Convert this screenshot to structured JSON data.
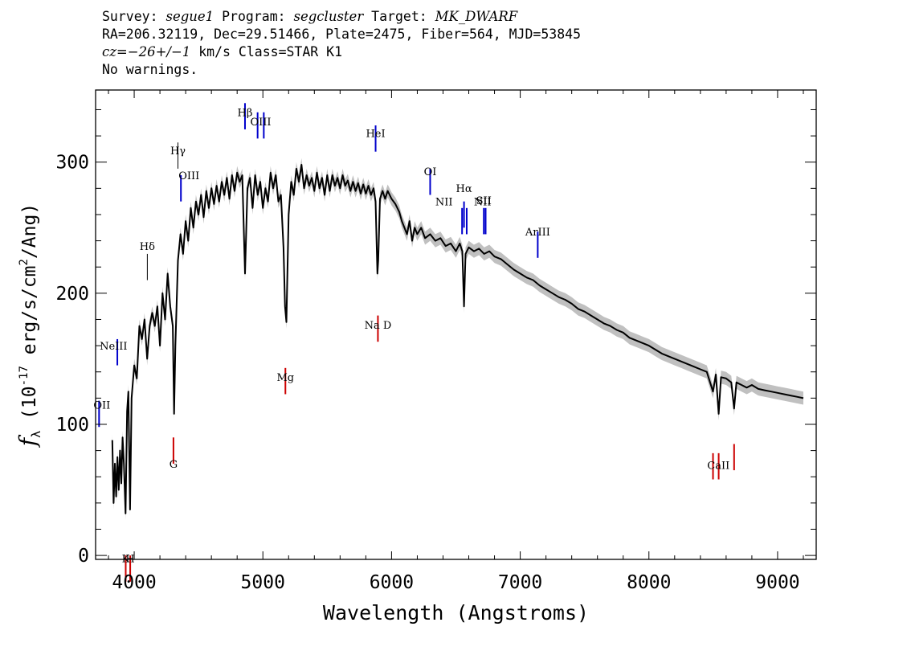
{
  "header": {
    "l1_survey_label": "Survey: ",
    "l1_survey": "segue1",
    "l1_program_label": " Program: ",
    "l1_program": "segcluster",
    "l1_target_label": " Target: ",
    "l1_target": "MK_DWARF",
    "l2": "RA=206.32119, Dec=29.51466, Plate=2475, Fiber=564, MJD=53845",
    "l3_cz_label": "cz=",
    "l3_cz": "−26+/−1",
    "l3_rest": " km/s Class=STAR K1",
    "l4": "No warnings."
  },
  "chart_data": {
    "type": "line",
    "xlabel": "Wavelength (Angstroms)",
    "ylabel": "f_λ (10^-17 erg/s/cm^2/Ang)",
    "xlim": [
      3700,
      9300
    ],
    "ylim": [
      -3,
      355
    ],
    "xticks": [
      4000,
      5000,
      6000,
      7000,
      8000,
      9000
    ],
    "yticks": [
      0,
      100,
      200,
      300
    ],
    "series_color": "#000000",
    "error_color": "#b0b0b0",
    "emission_color": "#0000cc",
    "absorption_color": "#cc0000",
    "spectrum": [
      [
        3830,
        88
      ],
      [
        3840,
        40
      ],
      [
        3850,
        70
      ],
      [
        3860,
        45
      ],
      [
        3870,
        75
      ],
      [
        3880,
        50
      ],
      [
        3890,
        80
      ],
      [
        3900,
        55
      ],
      [
        3910,
        90
      ],
      [
        3920,
        70
      ],
      [
        3933,
        32
      ],
      [
        3945,
        110
      ],
      [
        3955,
        125
      ],
      [
        3968,
        35
      ],
      [
        3980,
        120
      ],
      [
        4000,
        145
      ],
      [
        4020,
        135
      ],
      [
        4040,
        175
      ],
      [
        4060,
        165
      ],
      [
        4080,
        180
      ],
      [
        4101,
        150
      ],
      [
        4120,
        175
      ],
      [
        4140,
        185
      ],
      [
        4160,
        175
      ],
      [
        4180,
        190
      ],
      [
        4200,
        160
      ],
      [
        4220,
        200
      ],
      [
        4240,
        180
      ],
      [
        4260,
        215
      ],
      [
        4280,
        190
      ],
      [
        4300,
        175
      ],
      [
        4310,
        108
      ],
      [
        4320,
        160
      ],
      [
        4340,
        225
      ],
      [
        4360,
        245
      ],
      [
        4380,
        230
      ],
      [
        4400,
        255
      ],
      [
        4420,
        240
      ],
      [
        4440,
        265
      ],
      [
        4460,
        250
      ],
      [
        4480,
        270
      ],
      [
        4500,
        260
      ],
      [
        4520,
        275
      ],
      [
        4540,
        258
      ],
      [
        4560,
        278
      ],
      [
        4580,
        265
      ],
      [
        4600,
        280
      ],
      [
        4620,
        268
      ],
      [
        4640,
        282
      ],
      [
        4660,
        270
      ],
      [
        4680,
        285
      ],
      [
        4700,
        275
      ],
      [
        4720,
        288
      ],
      [
        4740,
        272
      ],
      [
        4760,
        290
      ],
      [
        4780,
        278
      ],
      [
        4800,
        292
      ],
      [
        4820,
        285
      ],
      [
        4840,
        290
      ],
      [
        4861,
        215
      ],
      [
        4880,
        280
      ],
      [
        4900,
        288
      ],
      [
        4920,
        265
      ],
      [
        4940,
        290
      ],
      [
        4960,
        275
      ],
      [
        4980,
        285
      ],
      [
        5000,
        265
      ],
      [
        5020,
        280
      ],
      [
        5040,
        270
      ],
      [
        5060,
        292
      ],
      [
        5080,
        280
      ],
      [
        5100,
        290
      ],
      [
        5120,
        270
      ],
      [
        5140,
        275
      ],
      [
        5160,
        235
      ],
      [
        5172,
        190
      ],
      [
        5183,
        178
      ],
      [
        5200,
        260
      ],
      [
        5220,
        285
      ],
      [
        5240,
        275
      ],
      [
        5260,
        295
      ],
      [
        5280,
        285
      ],
      [
        5300,
        298
      ],
      [
        5320,
        280
      ],
      [
        5340,
        290
      ],
      [
        5360,
        282
      ],
      [
        5380,
        288
      ],
      [
        5400,
        278
      ],
      [
        5420,
        292
      ],
      [
        5440,
        280
      ],
      [
        5460,
        288
      ],
      [
        5480,
        275
      ],
      [
        5500,
        290
      ],
      [
        5520,
        278
      ],
      [
        5540,
        290
      ],
      [
        5560,
        282
      ],
      [
        5580,
        288
      ],
      [
        5600,
        280
      ],
      [
        5620,
        290
      ],
      [
        5640,
        282
      ],
      [
        5660,
        286
      ],
      [
        5680,
        278
      ],
      [
        5700,
        285
      ],
      [
        5720,
        278
      ],
      [
        5740,
        284
      ],
      [
        5760,
        276
      ],
      [
        5780,
        283
      ],
      [
        5800,
        276
      ],
      [
        5820,
        282
      ],
      [
        5840,
        275
      ],
      [
        5860,
        280
      ],
      [
        5876,
        270
      ],
      [
        5890,
        215
      ],
      [
        5896,
        225
      ],
      [
        5910,
        272
      ],
      [
        5930,
        278
      ],
      [
        5950,
        272
      ],
      [
        5970,
        278
      ],
      [
        6000,
        272
      ],
      [
        6030,
        268
      ],
      [
        6060,
        262
      ],
      [
        6080,
        255
      ],
      [
        6100,
        250
      ],
      [
        6120,
        245
      ],
      [
        6140,
        255
      ],
      [
        6160,
        240
      ],
      [
        6180,
        250
      ],
      [
        6200,
        245
      ],
      [
        6230,
        250
      ],
      [
        6260,
        242
      ],
      [
        6300,
        245
      ],
      [
        6340,
        240
      ],
      [
        6380,
        242
      ],
      [
        6420,
        236
      ],
      [
        6460,
        238
      ],
      [
        6500,
        232
      ],
      [
        6530,
        238
      ],
      [
        6550,
        232
      ],
      [
        6563,
        190
      ],
      [
        6575,
        230
      ],
      [
        6600,
        235
      ],
      [
        6640,
        232
      ],
      [
        6680,
        234
      ],
      [
        6720,
        230
      ],
      [
        6760,
        232
      ],
      [
        6800,
        228
      ],
      [
        6850,
        226
      ],
      [
        6900,
        222
      ],
      [
        6950,
        218
      ],
      [
        7000,
        215
      ],
      [
        7050,
        212
      ],
      [
        7100,
        210
      ],
      [
        7150,
        206
      ],
      [
        7200,
        203
      ],
      [
        7250,
        200
      ],
      [
        7300,
        197
      ],
      [
        7350,
        195
      ],
      [
        7400,
        192
      ],
      [
        7450,
        188
      ],
      [
        7500,
        186
      ],
      [
        7550,
        183
      ],
      [
        7600,
        180
      ],
      [
        7650,
        177
      ],
      [
        7700,
        175
      ],
      [
        7750,
        172
      ],
      [
        7800,
        170
      ],
      [
        7850,
        166
      ],
      [
        7900,
        164
      ],
      [
        7950,
        162
      ],
      [
        8000,
        160
      ],
      [
        8050,
        157
      ],
      [
        8100,
        154
      ],
      [
        8150,
        152
      ],
      [
        8200,
        150
      ],
      [
        8250,
        148
      ],
      [
        8300,
        146
      ],
      [
        8350,
        144
      ],
      [
        8400,
        142
      ],
      [
        8450,
        140
      ],
      [
        8498,
        125
      ],
      [
        8520,
        138
      ],
      [
        8542,
        108
      ],
      [
        8560,
        136
      ],
      [
        8600,
        135
      ],
      [
        8640,
        132
      ],
      [
        8662,
        112
      ],
      [
        8680,
        132
      ],
      [
        8720,
        130
      ],
      [
        8760,
        128
      ],
      [
        8800,
        130
      ],
      [
        8850,
        127
      ],
      [
        8900,
        126
      ],
      [
        8950,
        125
      ],
      [
        9000,
        124
      ],
      [
        9050,
        123
      ],
      [
        9100,
        122
      ],
      [
        9150,
        121
      ],
      [
        9200,
        120
      ]
    ],
    "lines": [
      {
        "label": "OII",
        "x": 3727,
        "y": 98,
        "color": "emission",
        "text_y": 112
      },
      {
        "label": "NeIII",
        "x": 3869,
        "y": 145,
        "color": "emission",
        "text_y": 157
      },
      {
        "label": "Hδ",
        "x": 4102,
        "y": 210,
        "color": "neutral",
        "text_y": 233
      },
      {
        "label": "Hγ",
        "x": 4340,
        "y": 295,
        "color": "neutral",
        "text_y": 306
      },
      {
        "label": "OIII",
        "x": 4363,
        "y": 270,
        "color": "emission",
        "text_y": 287
      },
      {
        "label": "Hβ",
        "x": 4861,
        "y": 325,
        "color": "emission",
        "text_y": 335
      },
      {
        "label": "OIII",
        "x": 4959,
        "y": 318,
        "color": "emission",
        "text_y": 328
      },
      {
        "label": "OIII",
        "x": 5007,
        "y": 318,
        "color": "emission",
        "text_y": 328
      },
      {
        "label": "HeI",
        "x": 5876,
        "y": 308,
        "color": "emission",
        "text_y": 319
      },
      {
        "label": "OI",
        "x": 6300,
        "y": 275,
        "color": "emission",
        "text_y": 290
      },
      {
        "label": "NII",
        "x": 6548,
        "y": 245,
        "color": "emission",
        "text_y": 267
      },
      {
        "label": "Hα",
        "x": 6563,
        "y": 250,
        "color": "emission",
        "text_y": 277
      },
      {
        "label": "NII",
        "x": 6584,
        "y": 245,
        "color": "emission",
        "text_y": 267
      },
      {
        "label": "SII",
        "x": 6717,
        "y": 245,
        "color": "emission",
        "text_y": 268
      },
      {
        "label": "SII",
        "x": 6731,
        "y": 245,
        "color": "emission",
        "text_y": 268
      },
      {
        "label": "ArIII",
        "x": 7136,
        "y": 227,
        "color": "emission",
        "text_y": 244
      },
      {
        "label": "K",
        "x": 3934,
        "y": 0,
        "color": "absorption",
        "text_y": -5
      },
      {
        "label": "H",
        "x": 3969,
        "y": 0,
        "color": "absorption",
        "text_y": -5
      },
      {
        "label": "G",
        "x": 4305,
        "y": 90,
        "color": "absorption",
        "text_y": 67
      },
      {
        "label": "Mg",
        "x": 5175,
        "y": 143,
        "color": "absorption",
        "text_y": 133
      },
      {
        "label": "Na D",
        "x": 5894,
        "y": 183,
        "color": "absorption",
        "text_y": 173
      },
      {
        "label": "CaII",
        "x": 8498,
        "y": 78,
        "color": "absorption",
        "text_y": 66
      },
      {
        "label": "CaII",
        "x": 8542,
        "y": 78,
        "color": "absorption",
        "text_y": 66
      },
      {
        "label": "CaII",
        "x": 8662,
        "y": 85,
        "color": "absorption",
        "text_y": 66
      }
    ]
  }
}
